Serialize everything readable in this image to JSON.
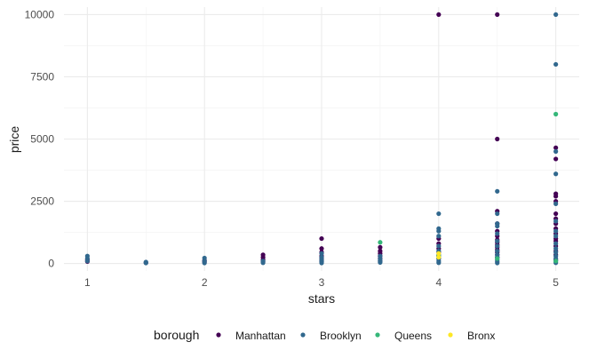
{
  "chart_data": {
    "type": "scatter",
    "xlabel": "stars",
    "ylabel": "price",
    "x_ticks": [
      1,
      2,
      3,
      4,
      5
    ],
    "y_ticks": [
      0,
      2500,
      5000,
      7500,
      10000
    ],
    "xlim": [
      0.8,
      5.2
    ],
    "ylim": [
      -300,
      10300
    ],
    "grid": true,
    "legend": {
      "title": "borough",
      "placement": "bottom"
    },
    "series": [
      {
        "name": "Manhattan",
        "color": "#440154",
        "points": [
          [
            1,
            150
          ],
          [
            1,
            80
          ],
          [
            1.5,
            30
          ],
          [
            2,
            120
          ],
          [
            2,
            60
          ],
          [
            2.5,
            350
          ],
          [
            2.5,
            250
          ],
          [
            2.5,
            150
          ],
          [
            2.5,
            80
          ],
          [
            3,
            1000
          ],
          [
            3,
            600
          ],
          [
            3,
            450
          ],
          [
            3,
            300
          ],
          [
            3,
            200
          ],
          [
            3,
            120
          ],
          [
            3,
            60
          ],
          [
            3.5,
            650
          ],
          [
            3.5,
            500
          ],
          [
            3.5,
            400
          ],
          [
            3.5,
            300
          ],
          [
            3.5,
            200
          ],
          [
            3.5,
            100
          ],
          [
            4,
            10000
          ],
          [
            4,
            1000
          ],
          [
            4,
            800
          ],
          [
            4,
            600
          ],
          [
            4,
            450
          ],
          [
            4,
            300
          ],
          [
            4,
            200
          ],
          [
            4.5,
            10000
          ],
          [
            4.5,
            5000
          ],
          [
            4.5,
            2100
          ],
          [
            4.5,
            1600
          ],
          [
            4.5,
            1300
          ],
          [
            4.5,
            1100
          ],
          [
            4.5,
            950
          ],
          [
            4.5,
            850
          ],
          [
            4.5,
            750
          ],
          [
            4.5,
            650
          ],
          [
            4.5,
            550
          ],
          [
            4.5,
            450
          ],
          [
            4.5,
            350
          ],
          [
            4.5,
            250
          ],
          [
            5,
            4650
          ],
          [
            5,
            4200
          ],
          [
            5,
            2800
          ],
          [
            5,
            2700
          ],
          [
            5,
            2500
          ],
          [
            5,
            2000
          ],
          [
            5,
            1800
          ],
          [
            5,
            1600
          ],
          [
            5,
            1400
          ],
          [
            5,
            1200
          ],
          [
            5,
            1000
          ],
          [
            5,
            900
          ],
          [
            5,
            700
          ],
          [
            5,
            500
          ],
          [
            5,
            350
          ],
          [
            5,
            150
          ]
        ]
      },
      {
        "name": "Brooklyn",
        "color": "#31688e",
        "points": [
          [
            1,
            300
          ],
          [
            1,
            200
          ],
          [
            1,
            100
          ],
          [
            1.5,
            60
          ],
          [
            1.5,
            20
          ],
          [
            2,
            220
          ],
          [
            2,
            100
          ],
          [
            2,
            20
          ],
          [
            2.5,
            100
          ],
          [
            2.5,
            30
          ],
          [
            3,
            400
          ],
          [
            3,
            250
          ],
          [
            3,
            150
          ],
          [
            3,
            80
          ],
          [
            3,
            20
          ],
          [
            3.5,
            300
          ],
          [
            3.5,
            180
          ],
          [
            3.5,
            100
          ],
          [
            3.5,
            40
          ],
          [
            4,
            2000
          ],
          [
            4,
            1400
          ],
          [
            4,
            1300
          ],
          [
            4,
            1100
          ],
          [
            4,
            700
          ],
          [
            4,
            500
          ],
          [
            4,
            350
          ],
          [
            4,
            200
          ],
          [
            4,
            100
          ],
          [
            4,
            30
          ],
          [
            4.5,
            2900
          ],
          [
            4.5,
            2000
          ],
          [
            4.5,
            1600
          ],
          [
            4.5,
            1500
          ],
          [
            4.5,
            1200
          ],
          [
            4.5,
            900
          ],
          [
            4.5,
            700
          ],
          [
            4.5,
            500
          ],
          [
            4.5,
            350
          ],
          [
            4.5,
            250
          ],
          [
            4.5,
            150
          ],
          [
            4.5,
            80
          ],
          [
            4.5,
            20
          ],
          [
            5,
            10000
          ],
          [
            5,
            8000
          ],
          [
            5,
            4500
          ],
          [
            5,
            3600
          ],
          [
            5,
            2400
          ],
          [
            5,
            1700
          ],
          [
            5,
            1300
          ],
          [
            5,
            1100
          ],
          [
            5,
            800
          ],
          [
            5,
            600
          ],
          [
            5,
            450
          ],
          [
            5,
            300
          ],
          [
            5,
            200
          ],
          [
            5,
            100
          ],
          [
            5,
            30
          ]
        ]
      },
      {
        "name": "Queens",
        "color": "#35b779",
        "points": [
          [
            3.5,
            850
          ],
          [
            4,
            300
          ],
          [
            4.5,
            200
          ],
          [
            5,
            6000
          ],
          [
            5,
            100
          ]
        ]
      },
      {
        "name": "Bronx",
        "color": "#fde725",
        "points": [
          [
            4,
            400
          ],
          [
            4,
            250
          ]
        ]
      }
    ]
  }
}
